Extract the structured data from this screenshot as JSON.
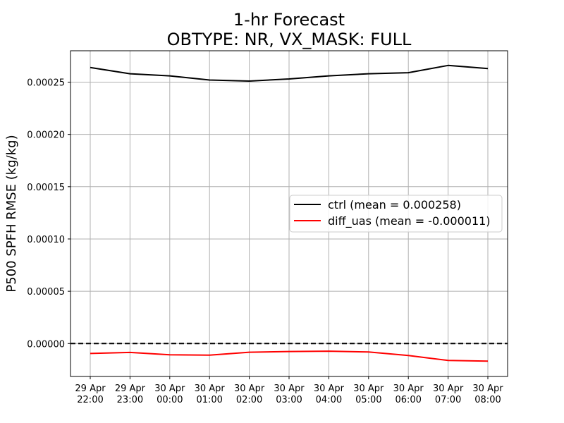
{
  "chart_data": {
    "type": "line",
    "title": [
      "1-hr Forecast",
      "OBTYPE: NR,  VX_MASK: FULL"
    ],
    "xlabel": "",
    "ylabel": "P500 SPFH RMSE (kg/kg)",
    "categories": [
      [
        "29 Apr",
        "22:00"
      ],
      [
        "29 Apr",
        "23:00"
      ],
      [
        "30 Apr",
        "00:00"
      ],
      [
        "30 Apr",
        "01:00"
      ],
      [
        "30 Apr",
        "02:00"
      ],
      [
        "30 Apr",
        "03:00"
      ],
      [
        "30 Apr",
        "04:00"
      ],
      [
        "30 Apr",
        "05:00"
      ],
      [
        "30 Apr",
        "06:00"
      ],
      [
        "30 Apr",
        "07:00"
      ],
      [
        "30 Apr",
        "08:00"
      ]
    ],
    "ylim": [
      -3.15e-05,
      0.00028
    ],
    "yticks": [
      0.0,
      5e-05,
      0.0001,
      0.00015,
      0.0002,
      0.00025
    ],
    "ytick_labels": [
      "0.00000",
      "0.00005",
      "0.00010",
      "0.00015",
      "0.00020",
      "0.00025"
    ],
    "grid": true,
    "legend_position": "center-right",
    "zero_line": {
      "value": 0,
      "style": "dashed",
      "color": "#000000"
    },
    "series": [
      {
        "name": "ctrl (mean = 0.000258)",
        "color": "#000000",
        "values": [
          0.000264,
          0.000258,
          0.000256,
          0.000252,
          0.000251,
          0.000253,
          0.000256,
          0.000258,
          0.000259,
          0.000266,
          0.000263
        ]
      },
      {
        "name": "diff_uas (mean = -0.000011)",
        "color": "#ff0000",
        "values": [
          -9.5e-06,
          -8.5e-06,
          -1.08e-05,
          -1.11e-05,
          -8.3e-06,
          -7.6e-06,
          -7.3e-06,
          -8.1e-06,
          -1.15e-05,
          -1.62e-05,
          -1.69e-05
        ]
      }
    ]
  }
}
